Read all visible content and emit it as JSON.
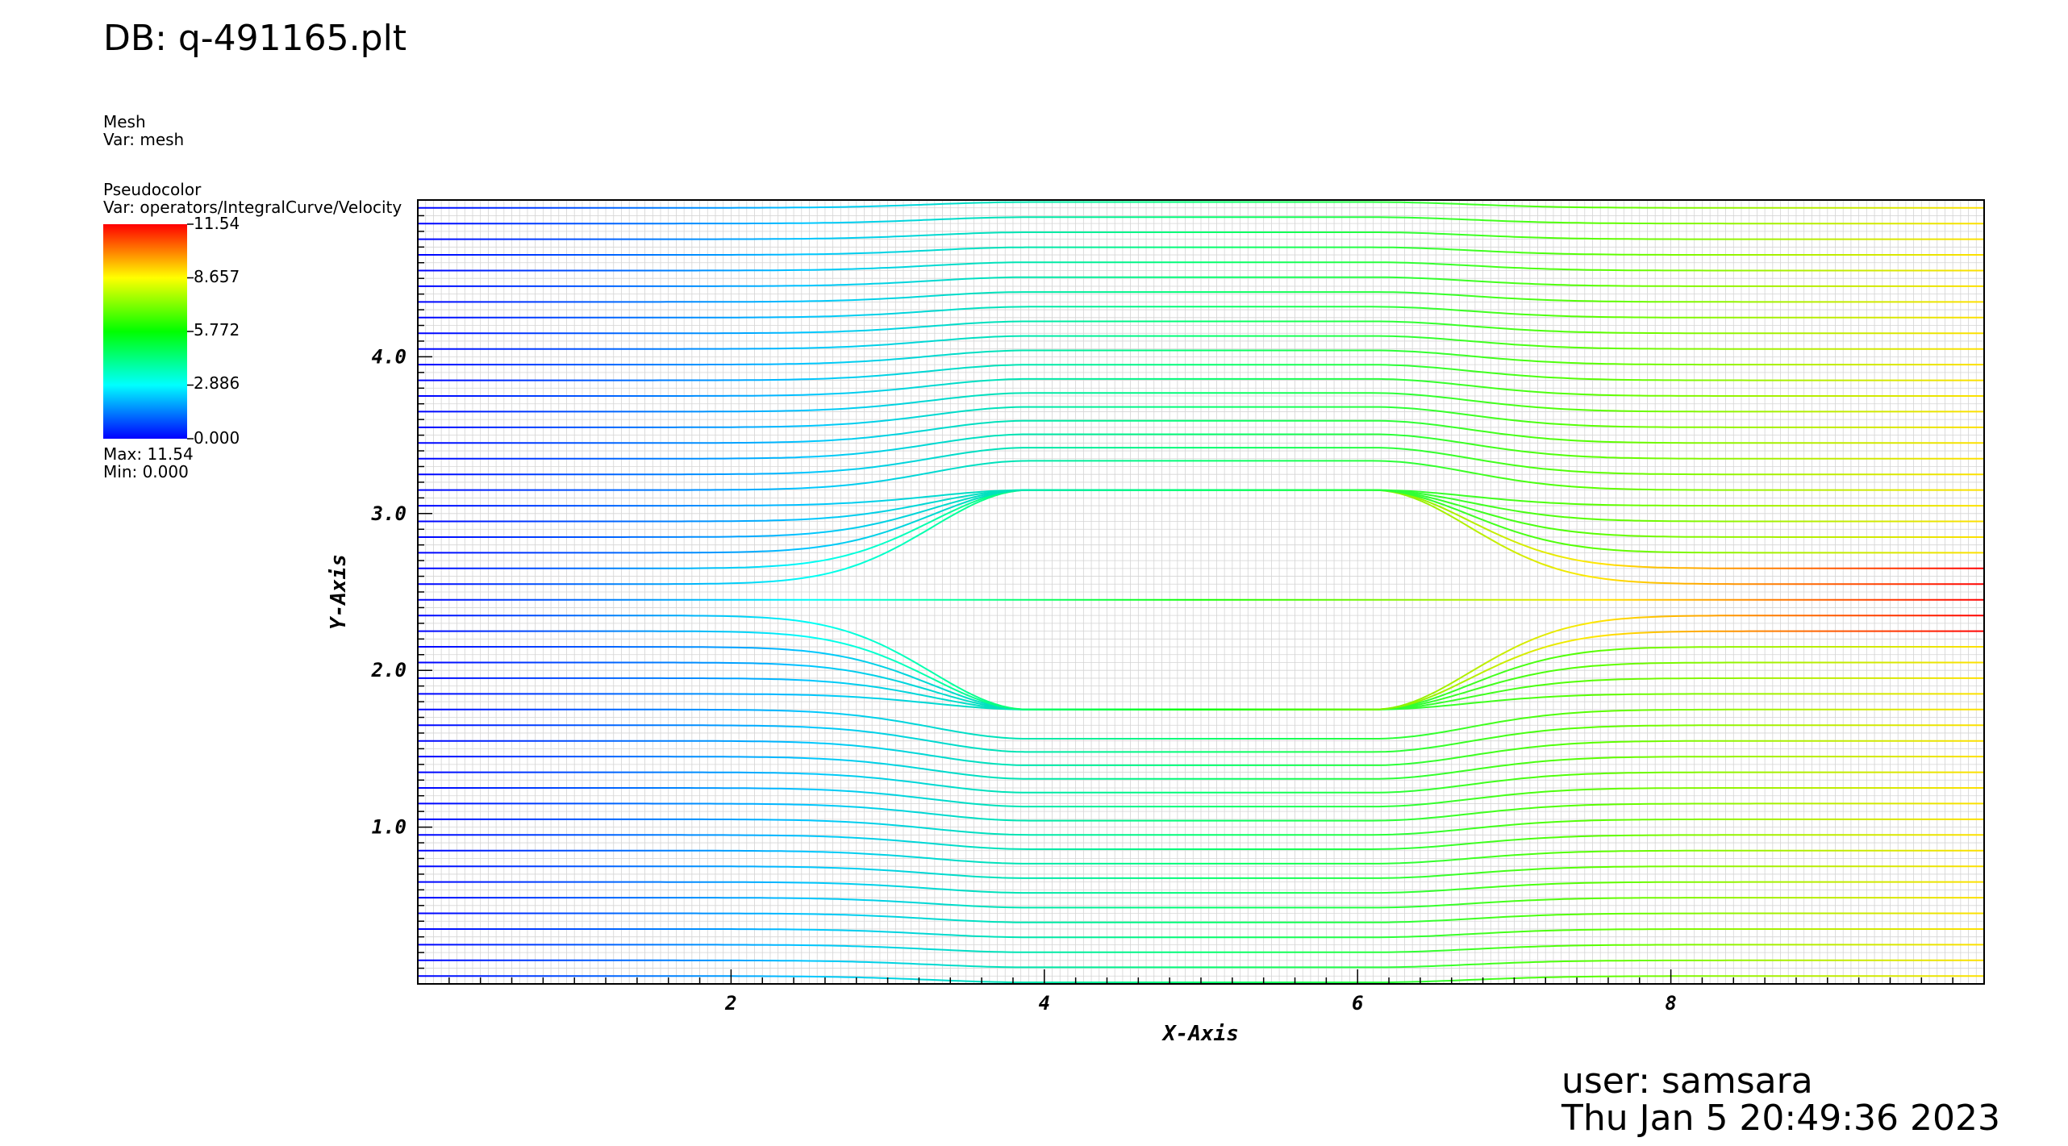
{
  "header": {
    "db_title": "DB: q-491165.plt"
  },
  "legend": {
    "mesh_plot": "Mesh",
    "mesh_var": "Var: mesh",
    "pseudo_plot": "Pseudocolor",
    "pseudo_var": "Var: operators/IntegralCurve/Velocity",
    "colorbar_labels": [
      "11.54",
      "8.657",
      "5.772",
      "2.886",
      "0.000"
    ],
    "max_label": "Max:  11.54",
    "min_label": "Min:  0.000",
    "colormap": [
      "#0000ff",
      "#00ffff",
      "#00ff00",
      "#ffff00",
      "#ff0000"
    ]
  },
  "footer": {
    "user": "user: samsara",
    "timestamp": "Thu Jan  5 20:49:36 2023"
  },
  "chart_data": {
    "type": "line",
    "xlabel": "X-Axis",
    "ylabel": "Y-Axis",
    "xlim": [
      0,
      10
    ],
    "ylim": [
      0,
      5
    ],
    "x_ticks": [
      "2",
      "4",
      "6",
      "8"
    ],
    "y_ticks": [
      "1.0",
      "2.0",
      "3.0",
      "4.0"
    ],
    "grid": true,
    "obstacle": {
      "x": [
        3.9,
        6.1
      ],
      "y": [
        1.8,
        3.1
      ]
    },
    "color_range": [
      0,
      11.54
    ],
    "streamline_count": 50
  }
}
